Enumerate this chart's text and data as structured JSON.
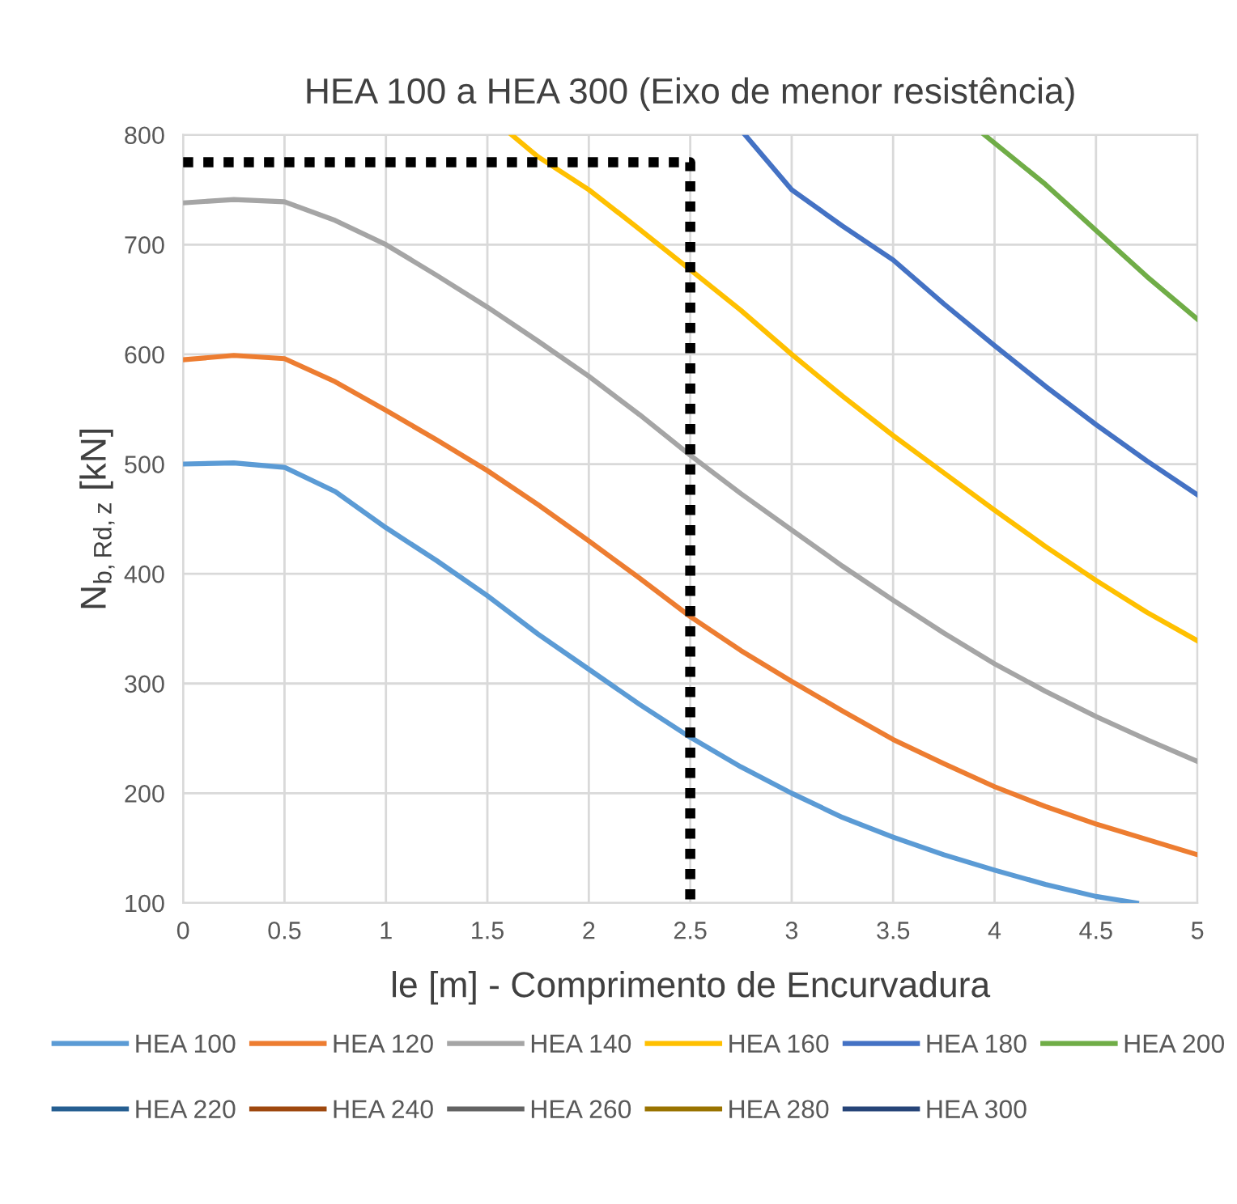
{
  "chart_data": {
    "type": "line",
    "title": "HEA 100 a HEA 300 (Eixo de menor resistência)",
    "xlabel": "le [m] - Comprimento de Encurvadura",
    "ylabel": "N$_{b,Rd,z}$ [kN]",
    "xlim": [
      0,
      5
    ],
    "ylim": [
      100,
      800
    ],
    "xticks": [
      0,
      0.5,
      1,
      1.5,
      2,
      2.5,
      3,
      3.5,
      4,
      4.5,
      5
    ],
    "yticks": [
      100,
      200,
      300,
      400,
      500,
      600,
      700,
      800
    ],
    "grid": true,
    "legend": "bottom",
    "line_style": "solid",
    "marker": "none",
    "series": [
      {
        "name": "HEA 100",
        "color": "#5b9bd5",
        "x": [
          0,
          0.25,
          0.5,
          0.75,
          1,
          1.25,
          1.5,
          1.75,
          2,
          2.25,
          2.5,
          2.75,
          3,
          3.25,
          3.5,
          3.75,
          4,
          4.25,
          4.5,
          4.7
        ],
        "values": [
          500,
          501,
          497,
          475,
          442,
          412,
          380,
          345,
          313,
          281,
          251,
          224,
          200,
          178,
          160,
          144,
          130,
          117,
          106,
          100
        ]
      },
      {
        "name": "HEA 120",
        "color": "#ed7d31",
        "x": [
          0,
          0.25,
          0.5,
          0.75,
          1,
          1.25,
          1.5,
          1.75,
          2,
          2.25,
          2.5,
          2.75,
          3,
          3.25,
          3.5,
          3.75,
          4,
          4.25,
          4.5,
          4.75,
          5
        ],
        "values": [
          595,
          599,
          596,
          575,
          549,
          522,
          494,
          463,
          430,
          396,
          361,
          330,
          302,
          275,
          249,
          227,
          206,
          188,
          172,
          158,
          144
        ]
      },
      {
        "name": "HEA 140",
        "color": "#a5a5a5",
        "x": [
          0,
          0.25,
          0.5,
          0.75,
          1,
          1.25,
          1.5,
          1.75,
          2,
          2.25,
          2.5,
          2.75,
          3,
          3.25,
          3.5,
          3.75,
          4,
          4.25,
          4.5,
          4.75,
          5
        ],
        "values": [
          738,
          741,
          739,
          722,
          700,
          672,
          643,
          612,
          580,
          545,
          508,
          473,
          440,
          407,
          376,
          346,
          318,
          293,
          270,
          249,
          229
        ]
      },
      {
        "name": "HEA 160",
        "color": "#ffc000",
        "x": [
          1.62,
          1.75,
          2,
          2.25,
          2.5,
          2.75,
          3,
          3.25,
          3.5,
          3.75,
          4,
          4.25,
          4.5,
          4.75,
          5
        ],
        "values": [
          800,
          780,
          750,
          714,
          677,
          640,
          600,
          562,
          526,
          492,
          458,
          425,
          394,
          365,
          339
        ]
      },
      {
        "name": "HEA 180",
        "color": "#4472c4",
        "x": [
          2.77,
          3,
          3.25,
          3.5,
          3.75,
          4,
          4.25,
          4.5,
          4.75,
          5
        ],
        "values": [
          800,
          750,
          717,
          686,
          646,
          608,
          571,
          536,
          503,
          472
        ]
      },
      {
        "name": "HEA 200",
        "color": "#70ad47",
        "x": [
          3.95,
          4.25,
          4.5,
          4.75,
          5
        ],
        "values": [
          800,
          755,
          713,
          671,
          632
        ]
      },
      {
        "name": "HEA 220",
        "color": "#255e91"
      },
      {
        "name": "HEA 240",
        "color": "#9e480e"
      },
      {
        "name": "HEA 260",
        "color": "#636363"
      },
      {
        "name": "HEA 280",
        "color": "#997300"
      },
      {
        "name": "HEA 300",
        "color": "#264478"
      },
      {
        "color": "#000000",
        "line_style": "dotted",
        "x": [
          0,
          2.5,
          2.5
        ],
        "values": [
          775,
          775,
          100
        ]
      }
    ]
  }
}
